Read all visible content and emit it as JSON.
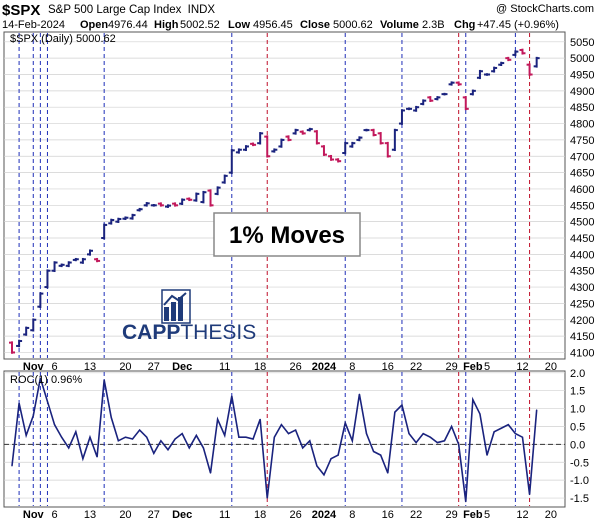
{
  "header": {
    "symbol": "$SPX",
    "name": "S&P 500 Large Cap Index",
    "exchange": "INDX",
    "date": "14-Feb-2024",
    "open_label": "Open",
    "open": "4976.44",
    "high_label": "High",
    "high": "5002.52",
    "low_label": "Low",
    "low": "4956.45",
    "close_label": "Close",
    "close": "5000.62",
    "volume_label": "Volume",
    "volume": "2.3B",
    "chg_label": "Chg",
    "chg": "+47.45 (+0.96%)",
    "watermark": "@ StockCharts.com"
  },
  "colors": {
    "up": "#1a237e",
    "down": "#c2185b",
    "grid": "#d0d0d0",
    "vline_blue": "#1f2fb8",
    "vline_red": "#c0102a",
    "roc_line": "#1a237e"
  },
  "annotation": {
    "text": "1% Moves"
  },
  "logo": {
    "text_bold": "CAPP",
    "text_light": "THESIS",
    "icon": "capp-thesis-bar-icon"
  },
  "chart_data": [
    {
      "type": "ohlc",
      "legend": "$SPX (Daily) 5000.62",
      "ylim": [
        4080,
        5080
      ],
      "yticks": [
        4100,
        4150,
        4200,
        4250,
        4300,
        4350,
        4400,
        4450,
        4500,
        4550,
        4600,
        4650,
        4700,
        4750,
        4800,
        4850,
        4900,
        4950,
        5000,
        5050
      ],
      "xlabels": [
        {
          "label": "Nov",
          "bold": true,
          "i": 3
        },
        {
          "label": "6",
          "i": 6
        },
        {
          "label": "13",
          "i": 11
        },
        {
          "label": "20",
          "i": 16
        },
        {
          "label": "27",
          "i": 20
        },
        {
          "label": "Dec",
          "bold": true,
          "i": 24
        },
        {
          "label": "11",
          "i": 30
        },
        {
          "label": "18",
          "i": 35
        },
        {
          "label": "26",
          "i": 40
        },
        {
          "label": "2024",
          "bold": true,
          "i": 44
        },
        {
          "label": "8",
          "i": 48
        },
        {
          "label": "16",
          "i": 53
        },
        {
          "label": "22",
          "i": 57
        },
        {
          "label": "29",
          "i": 62
        },
        {
          "label": "Feb",
          "bold": true,
          "i": 65
        },
        {
          "label": "5",
          "i": 67
        },
        {
          "label": "12",
          "i": 72
        },
        {
          "label": "20",
          "i": 76
        }
      ],
      "bars": [
        [
          4130,
          4100
        ],
        [
          4120,
          4135
        ],
        [
          4155,
          4175
        ],
        [
          4168,
          4200
        ],
        [
          4240,
          4280
        ],
        [
          4300,
          4350
        ],
        [
          4350,
          4375
        ],
        [
          4365,
          4368
        ],
        [
          4365,
          4375
        ],
        [
          4383,
          4385
        ],
        [
          4375,
          4385
        ],
        [
          4400,
          4411
        ],
        [
          4385,
          4380
        ],
        [
          4450,
          4490
        ],
        [
          4495,
          4505
        ],
        [
          4500,
          4508
        ],
        [
          4509,
          4512
        ],
        [
          4510,
          4520
        ],
        [
          4535,
          4538
        ],
        [
          4550,
          4556
        ],
        [
          4550,
          4550
        ],
        [
          4555,
          4550
        ],
        [
          4546,
          4549
        ],
        [
          4555,
          4550
        ],
        [
          4555,
          4567
        ],
        [
          4570,
          4567
        ],
        [
          4565,
          4585
        ],
        [
          4560,
          4590
        ],
        [
          4595,
          4550
        ],
        [
          4585,
          4604
        ],
        [
          4620,
          4640
        ],
        [
          4650,
          4718
        ],
        [
          4712,
          4720
        ],
        [
          4720,
          4730
        ],
        [
          4738,
          4735
        ],
        [
          4740,
          4770
        ],
        [
          4760,
          4700
        ],
        [
          4715,
          4720
        ],
        [
          4730,
          4750
        ],
        [
          4760,
          4750
        ],
        [
          4770,
          4780
        ],
        [
          4775,
          4770
        ],
        [
          4780,
          4783
        ],
        [
          4776,
          4740
        ],
        [
          4730,
          4705
        ],
        [
          4700,
          4690
        ],
        [
          4690,
          4685
        ],
        [
          4710,
          4740
        ],
        [
          4730,
          4740
        ],
        [
          4750,
          4757
        ],
        [
          4780,
          4780
        ],
        [
          4780,
          4765
        ],
        [
          4770,
          4740
        ],
        [
          4740,
          4700
        ],
        [
          4720,
          4780
        ],
        [
          4800,
          4840
        ],
        [
          4845,
          4845
        ],
        [
          4840,
          4850
        ],
        [
          4860,
          4870
        ],
        [
          4880,
          4870
        ],
        [
          4875,
          4880
        ],
        [
          4890,
          4890
        ],
        [
          4920,
          4925
        ],
        [
          4925,
          4920
        ],
        [
          4880,
          4845
        ],
        [
          4890,
          4900
        ],
        [
          4940,
          4960
        ],
        [
          4950,
          4950
        ],
        [
          4960,
          4970
        ],
        [
          4980,
          4985
        ],
        [
          5000,
          4995
        ],
        [
          5010,
          5020
        ],
        [
          5025,
          5015
        ],
        [
          4980,
          4950
        ],
        [
          4975,
          5000
        ]
      ]
    },
    {
      "type": "line",
      "legend": "ROC(1) 0.96%",
      "ylim": [
        -1.75,
        2.05
      ],
      "yticks": [
        -1.5,
        -1.0,
        -0.5,
        0.0,
        0.5,
        1.0,
        1.5,
        2.0
      ],
      "values": [
        -0.6,
        1.15,
        0.25,
        0.8,
        1.85,
        1.2,
        0.55,
        0.2,
        -0.1,
        0.35,
        -0.4,
        0.2,
        -0.35,
        1.8,
        0.75,
        0.1,
        0.2,
        0.15,
        0.4,
        0.2,
        -0.25,
        0.1,
        -0.15,
        0.15,
        0.3,
        -0.1,
        0.25,
        -0.1,
        -0.8,
        0.7,
        0.25,
        1.35,
        0.2,
        0.2,
        0.15,
        0.7,
        -1.5,
        0.2,
        0.55,
        0.3,
        0.4,
        -0.1,
        0.1,
        -0.6,
        -0.85,
        -0.4,
        -0.3,
        0.6,
        0.1,
        1.4,
        0.3,
        -0.2,
        -0.3,
        -0.8,
        0.9,
        1.1,
        0.3,
        0.05,
        0.3,
        0.2,
        0.05,
        0.1,
        0.5,
        0.0,
        -1.6,
        1.25,
        0.85,
        -0.3,
        0.35,
        0.45,
        0.55,
        0.3,
        0.2,
        -1.4,
        0.96
      ],
      "hline": 0
    }
  ],
  "vertical_lines": {
    "blue": [
      1,
      3,
      4,
      5,
      13,
      31,
      47,
      55,
      64,
      71
    ],
    "red": [
      36,
      63,
      73
    ]
  }
}
